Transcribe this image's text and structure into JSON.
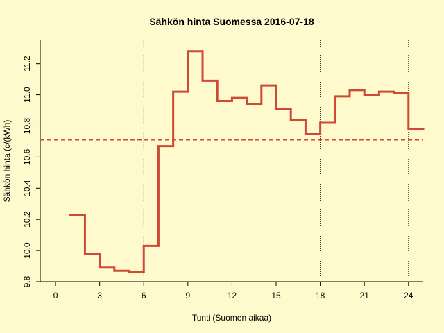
{
  "chart_data": {
    "type": "step",
    "title": "Sähkön hinta Suomessa 2016-07-18",
    "xlabel": "Tunti (Suomen aikaa)",
    "ylabel": "Sähkön hinta (c/(kWh)",
    "x": [
      1,
      2,
      3,
      4,
      5,
      6,
      7,
      8,
      9,
      10,
      11,
      12,
      13,
      14,
      15,
      16,
      17,
      18,
      19,
      20,
      21,
      22,
      23,
      24
    ],
    "values": [
      10.23,
      9.98,
      9.89,
      9.87,
      9.86,
      10.03,
      10.67,
      11.02,
      11.28,
      11.09,
      10.96,
      10.98,
      10.94,
      11.06,
      10.91,
      10.84,
      10.75,
      10.82,
      10.99,
      11.03,
      11.0,
      11.02,
      11.01,
      10.78
    ],
    "color": "#cd4b34",
    "mean_line": 10.71,
    "vlines": [
      6,
      12,
      18,
      24
    ],
    "xlim": [
      -1.04,
      25
    ],
    "ylim": [
      9.8,
      11.35
    ],
    "xticks": [
      0,
      3,
      6,
      9,
      12,
      15,
      18,
      21,
      24
    ],
    "yticks": [
      9.8,
      {
        "value": 10.0,
        "label": "10.0"
      },
      10.2,
      10.4,
      10.6,
      10.8,
      {
        "value": 11.0,
        "label": "11.0"
      },
      11.2
    ]
  }
}
